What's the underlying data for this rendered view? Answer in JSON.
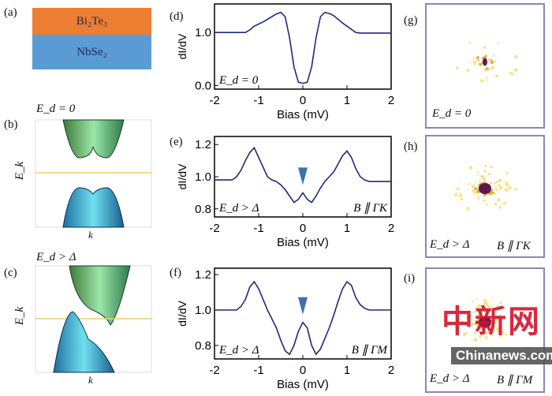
{
  "panel_labels": [
    "(a)",
    "(b)",
    "(c)",
    "(d)",
    "(e)",
    "(f)",
    "(g)",
    "(h)",
    "(i)"
  ],
  "layers": {
    "top": "Bi₂Te₃",
    "bottom": "NbSe₂",
    "top_color": "#ed7d31",
    "bottom_color": "#5b9bd5"
  },
  "band": {
    "b_title": "E_d = 0",
    "c_title": "E_d > Δ",
    "ylabel": "E_k",
    "xlabel": "k"
  },
  "fft": {
    "g_label": "E_d = 0",
    "h_label": "E_d > Δ",
    "h_field": "B ∥ ΓK",
    "i_label": "E_d > Δ",
    "i_field": "B ∥ ΓM"
  },
  "watermark": {
    "cn": "中新网",
    "en": "Chinanews.com"
  },
  "chart_data": [
    {
      "type": "line",
      "panel": "(d)",
      "xlabel": "Bias (mV)",
      "ylabel": "dI/dV",
      "xlim": [
        -2,
        2
      ],
      "ylim": [
        -0.07,
        1.54
      ],
      "xticks": [
        "-2",
        "-1",
        "0",
        "1",
        "2"
      ],
      "yticks": [
        "0.0",
        "1.0"
      ],
      "ytick_values": [
        0,
        1
      ],
      "annotation": "E_d = 0",
      "color": "#1f2a7a",
      "x": [
        -2,
        -1.9,
        -1.8,
        -1.7,
        -1.6,
        -1.5,
        -1.4,
        -1.3,
        -1.2,
        -1.1,
        -1,
        -0.9,
        -0.8,
        -0.7,
        -0.6,
        -0.5,
        -0.4,
        -0.3,
        -0.2,
        -0.1,
        0,
        0.1,
        0.2,
        0.3,
        0.4,
        0.5,
        0.6,
        0.7,
        0.8,
        0.9,
        1,
        1.1,
        1.2,
        1.3,
        1.4,
        1.5,
        1.6,
        1.7,
        1.8,
        1.9,
        2
      ],
      "y": [
        1,
        1,
        1,
        1,
        1,
        1,
        1,
        1,
        1.05,
        1.12,
        1.16,
        1.2,
        1.25,
        1.3,
        1.35,
        1.38,
        1.3,
        0.9,
        0.35,
        0.06,
        0.04,
        0.06,
        0.35,
        0.9,
        1.3,
        1.38,
        1.36,
        1.32,
        1.25,
        1.18,
        1.12,
        1.06,
        1,
        0.99,
        0.99,
        0.99,
        0.99,
        0.99,
        0.99,
        0.99,
        0.99
      ]
    },
    {
      "type": "line",
      "panel": "(e)",
      "xlabel": "Bias (mV)",
      "ylabel": "dI/dV",
      "xlim": [
        -2,
        2
      ],
      "ylim": [
        0.75,
        1.25
      ],
      "xticks": [
        "-2",
        "-1",
        "0",
        "1",
        "2"
      ],
      "yticks": [
        "0.8",
        "1.0",
        "1.2"
      ],
      "ytick_values": [
        0.8,
        1.0,
        1.2
      ],
      "annotation": "E_d > Δ",
      "field": "B ∥ ΓK",
      "marker": "triangle at 0 mV",
      "color": "#1f2a7a",
      "x": [
        -2,
        -1.9,
        -1.8,
        -1.7,
        -1.6,
        -1.5,
        -1.4,
        -1.3,
        -1.2,
        -1.1,
        -1,
        -0.9,
        -0.8,
        -0.7,
        -0.6,
        -0.5,
        -0.4,
        -0.3,
        -0.2,
        -0.1,
        0,
        0.1,
        0.2,
        0.3,
        0.4,
        0.5,
        0.6,
        0.7,
        0.8,
        0.9,
        1,
        1.1,
        1.2,
        1.3,
        1.4,
        1.5,
        1.6,
        1.7,
        1.8,
        1.9,
        2
      ],
      "y": [
        0.98,
        0.98,
        0.98,
        0.98,
        0.98,
        1,
        1.04,
        1.1,
        1.15,
        1.18,
        1.12,
        1.06,
        1,
        0.98,
        0.97,
        0.95,
        0.92,
        0.88,
        0.84,
        0.86,
        0.9,
        0.86,
        0.84,
        0.88,
        0.93,
        0.97,
        1,
        1.03,
        1.08,
        1.13,
        1.16,
        1.12,
        1.05,
        1,
        0.98,
        0.97,
        0.97,
        0.97,
        0.97,
        0.97,
        0.97
      ]
    },
    {
      "type": "line",
      "panel": "(f)",
      "xlabel": "Bias (mV)",
      "ylabel": "dI/dV",
      "xlim": [
        -2,
        2
      ],
      "ylim": [
        0.724,
        1.236
      ],
      "xticks": [
        "-2",
        "-1",
        "0",
        "1",
        "2"
      ],
      "yticks": [
        "0.8",
        "1.0",
        "1.2"
      ],
      "ytick_values": [
        0.8,
        1.0,
        1.2
      ],
      "annotation": "E_d > Δ",
      "field": "B ∥ ΓM",
      "marker": "triangle at 0 mV",
      "color": "#1f2a7a",
      "x": [
        -2,
        -1.9,
        -1.8,
        -1.7,
        -1.6,
        -1.5,
        -1.4,
        -1.3,
        -1.2,
        -1.1,
        -1,
        -0.9,
        -0.8,
        -0.7,
        -0.6,
        -0.5,
        -0.4,
        -0.3,
        -0.2,
        -0.1,
        0,
        0.1,
        0.2,
        0.3,
        0.4,
        0.5,
        0.6,
        0.7,
        0.8,
        0.9,
        1,
        1.1,
        1.2,
        1.3,
        1.4,
        1.5,
        1.6,
        1.7,
        1.8,
        1.9,
        2
      ],
      "y": [
        1,
        1,
        1,
        1,
        1,
        1,
        1.02,
        1.06,
        1.13,
        1.16,
        1.12,
        1.06,
        1,
        0.95,
        0.9,
        0.83,
        0.77,
        0.75,
        0.8,
        0.88,
        0.93,
        0.9,
        0.8,
        0.75,
        0.78,
        0.84,
        0.9,
        0.97,
        1.05,
        1.12,
        1.16,
        1.14,
        1.07,
        1.03,
        1.01,
        1,
        1,
        1,
        1,
        1,
        1
      ]
    }
  ]
}
